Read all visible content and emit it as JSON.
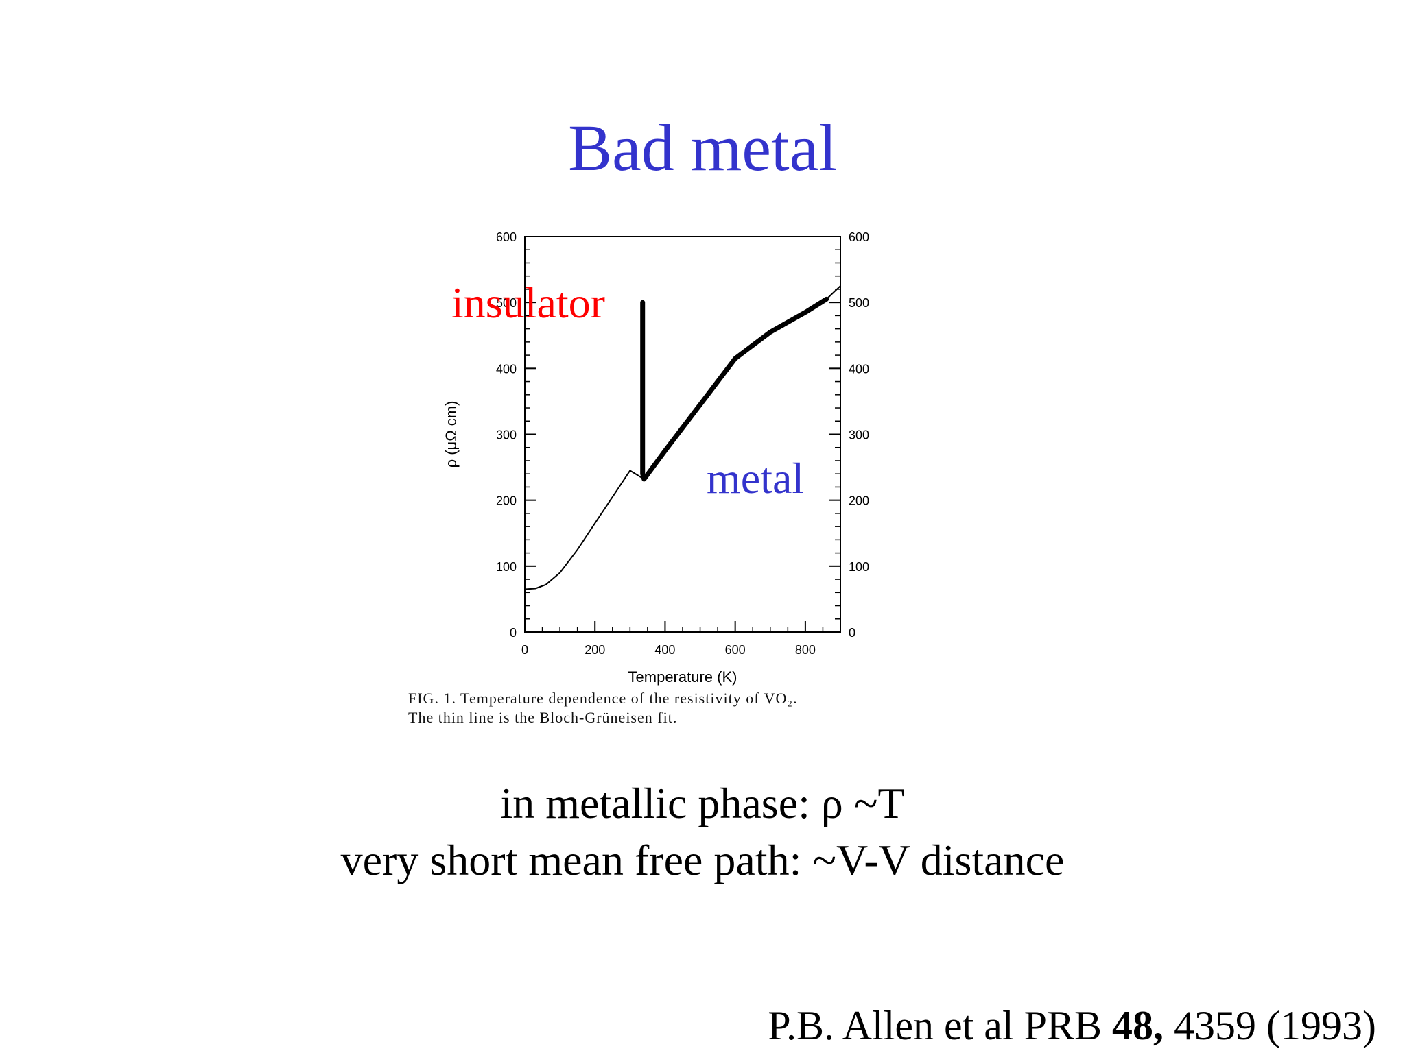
{
  "slide": {
    "title": "Bad metal",
    "body_lines": [
      "in metallic phase: ρ ~T",
      "very short mean free path: ~V-V distance"
    ],
    "citation": {
      "prefix": "P.B. Allen et al PRB ",
      "volume": "48,",
      "suffix": " 4359 (1993)"
    },
    "colors": {
      "title": "#3333cc",
      "insulator": "#ff0000",
      "metal": "#3333cc"
    }
  },
  "chart_data": {
    "type": "line",
    "xlabel": "Temperature (K)",
    "ylabel": "ρ (μΩ cm)",
    "xlim": [
      0,
      900
    ],
    "ylim": [
      0,
      600
    ],
    "xticks": [
      0,
      200,
      400,
      600,
      800
    ],
    "yticks": [
      0,
      100,
      200,
      300,
      400,
      500,
      600
    ],
    "grid": false,
    "caption": [
      "FIG. 1.  Temperature dependence of the resistivity of VO₂.",
      "The thin line is the Bloch-Grüneisen fit."
    ],
    "annotations": [
      "insulator",
      "metal"
    ],
    "series": [
      {
        "style": "thin",
        "x": [
          0,
          30,
          60,
          100,
          150,
          200,
          250,
          300,
          340,
          400,
          500,
          600,
          700,
          800,
          860,
          900
        ],
        "y": [
          65,
          66,
          72,
          90,
          125,
          165,
          205,
          245,
          232,
          275,
          345,
          415,
          455,
          485,
          505,
          525
        ]
      },
      {
        "style": "thick",
        "x": [
          336,
          336,
          340,
          400,
          500,
          600,
          700,
          800,
          860
        ],
        "y": [
          500,
          240,
          232,
          275,
          345,
          415,
          455,
          485,
          505
        ]
      }
    ]
  }
}
